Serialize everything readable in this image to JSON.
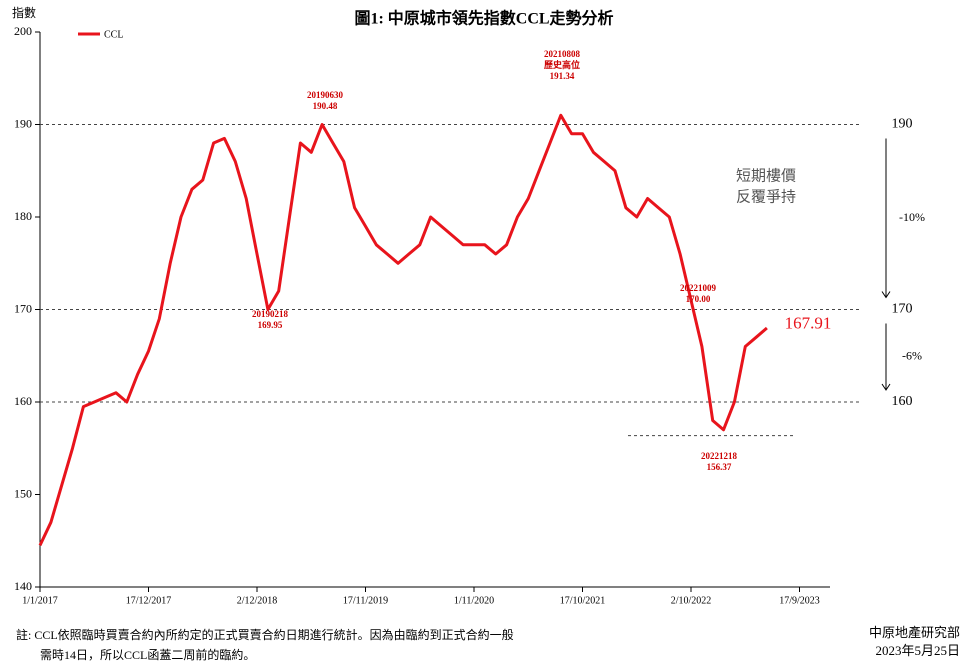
{
  "chart_data": {
    "type": "line",
    "title": "圖1: 中原城市領先指數CCL走勢分析",
    "y_label": "指數",
    "categories": [
      "1/1/2017",
      null,
      null,
      null,
      null,
      null,
      null,
      null,
      null,
      null,
      "17/12/2017",
      null,
      null,
      null,
      null,
      null,
      null,
      null,
      null,
      null,
      "2/12/2018",
      null,
      null,
      null,
      null,
      null,
      null,
      null,
      null,
      null,
      "17/11/2019",
      null,
      null,
      null,
      null,
      null,
      null,
      null,
      null,
      null,
      "1/11/2020",
      null,
      null,
      null,
      null,
      null,
      null,
      null,
      null,
      null,
      "17/10/2021",
      null,
      null,
      null,
      null,
      null,
      null,
      null,
      null,
      null,
      "2/10/2022",
      null,
      null,
      null,
      null,
      null,
      null,
      null,
      null,
      null,
      "17/9/2023",
      null,
      null
    ],
    "series": [
      {
        "name": "CCL",
        "color": "#e8141c",
        "values": [
          144.5,
          147,
          151,
          155,
          159.5,
          160,
          160.5,
          161,
          160,
          163,
          165.5,
          169,
          175,
          180,
          183,
          184,
          188,
          188.5,
          186,
          182,
          176,
          170,
          172,
          180,
          188,
          187,
          190,
          188,
          186,
          181,
          179,
          177,
          176,
          175,
          176,
          177,
          180,
          179,
          178,
          177,
          177,
          177,
          176,
          177,
          180,
          182,
          185,
          188,
          191,
          189,
          189,
          187,
          186,
          185,
          181,
          180,
          182,
          181,
          180,
          176,
          171,
          166,
          158,
          157,
          160,
          166,
          167,
          168,
          null,
          null,
          null,
          null,
          null
        ]
      }
    ],
    "ylim": [
      140,
      200
    ],
    "yticks": [
      140,
      150,
      160,
      170,
      180,
      190,
      200
    ],
    "reference_lines": [
      190,
      170,
      160
    ],
    "changes": [
      "-10%",
      "-6%"
    ],
    "latest": 167.91,
    "note_box": [
      "短期樓價",
      "反覆爭持"
    ],
    "annotations": [
      {
        "date": "20190630",
        "value": 190.48
      },
      {
        "date": "20190218",
        "value": 169.95
      },
      {
        "date": "20210808",
        "text": "歷史高位",
        "value": 191.34
      },
      {
        "date": "20221009",
        "value": 170,
        "value_label": "170.00"
      },
      {
        "date": "20221218",
        "value": 156.37
      }
    ],
    "footnote": [
      "註: CCL依照臨時買賣合約內所約定的正式買賣合約日期進行統計。因為由臨約到正式合約一般",
      "需時14日，所以CCL函蓋二周前的臨約。"
    ],
    "source": "中原地產研究部",
    "date": "2023年5月25日"
  }
}
